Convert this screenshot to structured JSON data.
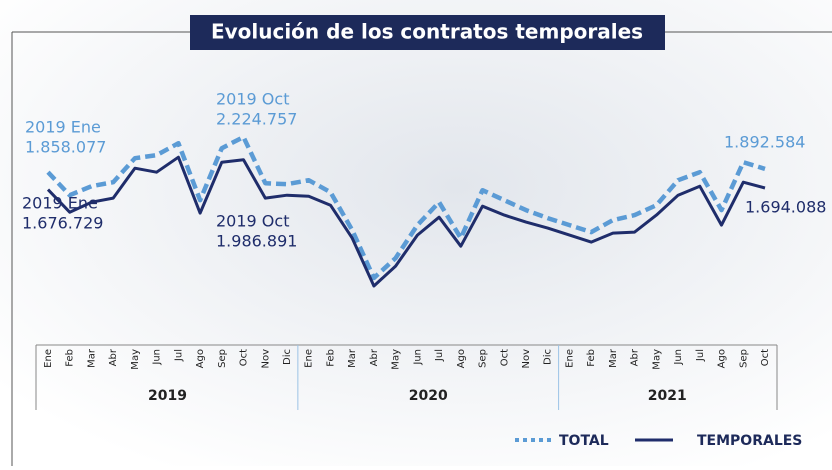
{
  "chart_data": {
    "type": "line",
    "title": "Evolución de los contratos temporales",
    "categories": [
      "Ene",
      "Feb",
      "Mar",
      "Abr",
      "May",
      "Jun",
      "Jul",
      "Ago",
      "Sep",
      "Oct",
      "Nov",
      "Dic",
      "Ene",
      "Feb",
      "Mar",
      "Abr",
      "May",
      "Jun",
      "Jul",
      "Ago",
      "Sep",
      "Oct",
      "Nov",
      "Dic",
      "Ene",
      "Feb",
      "Mar",
      "Abr",
      "May",
      "Jun",
      "Jul",
      "Ago",
      "Sep",
      "Oct"
    ],
    "years": [
      "2019",
      "2020",
      "2021"
    ],
    "series": [
      {
        "name": "TOTAL",
        "color": "#5b9bd5",
        "values": [
          1858077,
          1619000,
          1712000,
          1754000,
          2004000,
          2035000,
          2160000,
          1567000,
          2108000,
          2224757,
          1744000,
          1733000,
          1775000,
          1650000,
          1255000,
          756000,
          964000,
          1307000,
          1546000,
          1172000,
          1671000,
          1567000,
          1463000,
          1380000,
          1307000,
          1234000,
          1359000,
          1411000,
          1515000,
          1775000,
          1858000,
          1463000,
          1962000,
          1892584
        ]
      },
      {
        "name": "TEMPORALES",
        "color": "#1f2d6b",
        "values": [
          1676729,
          1442000,
          1546000,
          1588000,
          1900000,
          1858000,
          2014000,
          1432000,
          1962000,
          1986891,
          1588000,
          1619000,
          1608000,
          1515000,
          1172000,
          673000,
          880000,
          1203000,
          1390000,
          1088000,
          1504000,
          1411000,
          1338000,
          1276000,
          1203000,
          1130000,
          1224000,
          1234000,
          1411000,
          1619000,
          1712000,
          1307000,
          1754000,
          1694088
        ]
      }
    ],
    "annotations": [
      [
        "2019 Ene",
        "1.858.077"
      ],
      [
        "2019 Oct",
        "2.224.757"
      ],
      [
        "1.892.584"
      ],
      [
        "2019 Ene",
        "1.676.729"
      ],
      [
        "2019 Oct",
        "1.986.891"
      ],
      [
        "1.694.088"
      ]
    ]
  }
}
